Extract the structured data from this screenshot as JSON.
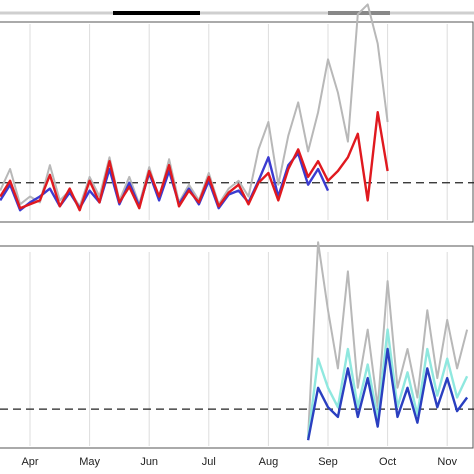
{
  "chart_data": [
    {
      "type": "line",
      "ylim": [
        0,
        10
      ],
      "reference_line": 1.9,
      "series": [
        {
          "color": "#b8b8b8",
          "values": [
            1.5,
            2.6,
            0.8,
            1.2,
            0.9,
            2.8,
            1.0,
            1.5,
            0.7,
            2.2,
            1.2,
            3.2,
            1.0,
            2.2,
            0.8,
            2.7,
            1.1,
            3.1,
            0.9,
            1.8,
            1.0,
            2.4,
            0.8,
            1.6,
            2.0,
            1.2,
            3.6,
            5.0,
            1.8,
            4.3,
            6.0,
            3.5,
            5.5,
            8.2,
            6.5,
            4.0,
            10.5,
            11.0,
            9.0,
            5.0,
            null,
            null,
            null,
            null,
            null,
            null,
            null,
            null
          ]
        },
        {
          "color": "#3b3bd0",
          "values": [
            1.0,
            1.8,
            0.5,
            0.9,
            1.2,
            1.6,
            0.7,
            1.4,
            0.6,
            1.5,
            0.9,
            2.6,
            0.8,
            1.9,
            0.7,
            2.4,
            1.0,
            2.5,
            0.8,
            1.6,
            0.8,
            2.0,
            0.6,
            1.3,
            1.5,
            0.9,
            2.0,
            3.2,
            1.2,
            2.8,
            3.4,
            1.8,
            2.6,
            1.5,
            null,
            null,
            null,
            null,
            null,
            null,
            null,
            null,
            null,
            null,
            null,
            null,
            null,
            null
          ]
        },
        {
          "color": "#e0191f",
          "values": [
            1.2,
            2.0,
            0.6,
            0.8,
            1.0,
            2.3,
            0.7,
            1.6,
            0.5,
            2.0,
            0.9,
            3.0,
            0.9,
            1.7,
            0.6,
            2.5,
            1.2,
            2.8,
            0.7,
            1.5,
            0.9,
            2.2,
            0.7,
            1.4,
            1.8,
            0.8,
            1.9,
            2.4,
            1.0,
            2.6,
            3.6,
            2.2,
            3.0,
            2.0,
            2.5,
            3.2,
            4.4,
            1.0,
            5.5,
            2.5,
            null,
            null,
            null,
            null,
            null,
            null,
            null,
            null
          ]
        }
      ]
    },
    {
      "type": "line",
      "ylim": [
        0,
        10
      ],
      "reference_line": 1.9,
      "categories": [
        null,
        null,
        null,
        "Apr",
        null,
        null,
        null,
        null,
        null,
        "May",
        null,
        null,
        null,
        null,
        null,
        "Jun",
        null,
        null,
        null,
        null,
        null,
        "Jul",
        null,
        null,
        null,
        null,
        null,
        "Aug",
        null,
        null,
        null,
        null,
        null,
        "Sep",
        null,
        null,
        null,
        null,
        null,
        "Oct",
        null,
        null,
        null,
        null,
        null,
        "Nov",
        null,
        null
      ],
      "series": [
        {
          "color": "#b8b8b8",
          "values": [
            null,
            null,
            null,
            null,
            null,
            null,
            null,
            null,
            null,
            null,
            null,
            null,
            null,
            null,
            null,
            null,
            null,
            null,
            null,
            null,
            null,
            null,
            null,
            null,
            null,
            null,
            null,
            null,
            null,
            null,
            null,
            0.5,
            10.5,
            7.0,
            4.0,
            9.0,
            3.0,
            6.0,
            2.0,
            8.5,
            3.0,
            5.0,
            2.5,
            7.0,
            3.5,
            6.5,
            4.0,
            6.0
          ]
        },
        {
          "color": "#8fe8df",
          "values": [
            null,
            null,
            null,
            null,
            null,
            null,
            null,
            null,
            null,
            null,
            null,
            null,
            null,
            null,
            null,
            null,
            null,
            null,
            null,
            null,
            null,
            null,
            null,
            null,
            null,
            null,
            null,
            null,
            null,
            null,
            null,
            0.4,
            4.5,
            3.0,
            2.0,
            5.0,
            2.0,
            4.2,
            1.4,
            6.0,
            2.0,
            3.8,
            1.6,
            5.0,
            2.6,
            4.5,
            2.5,
            3.6
          ]
        },
        {
          "color": "#2a3fc0",
          "values": [
            null,
            null,
            null,
            null,
            null,
            null,
            null,
            null,
            null,
            null,
            null,
            null,
            null,
            null,
            null,
            null,
            null,
            null,
            null,
            null,
            null,
            null,
            null,
            null,
            null,
            null,
            null,
            null,
            null,
            null,
            null,
            0.3,
            3.0,
            2.0,
            1.5,
            4.0,
            1.5,
            3.5,
            1.0,
            5.0,
            1.5,
            3.0,
            1.2,
            4.0,
            2.0,
            3.5,
            1.8,
            2.5
          ]
        }
      ]
    }
  ]
}
